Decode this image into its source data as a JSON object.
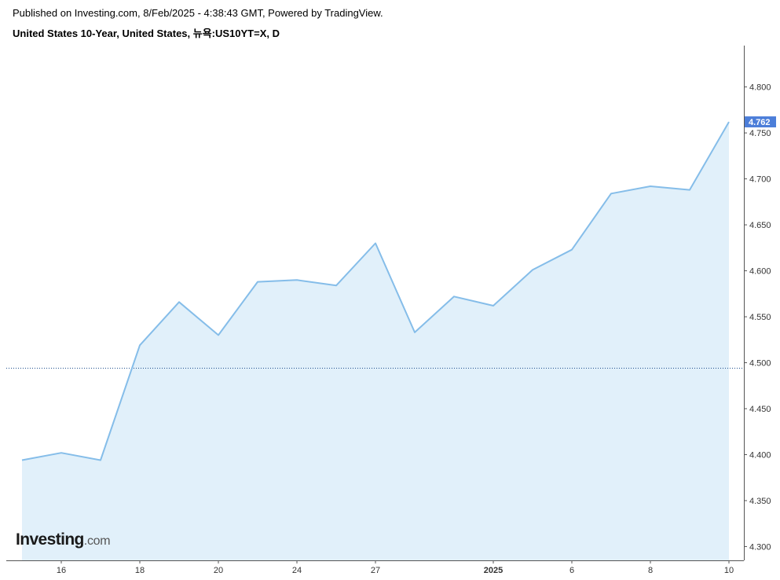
{
  "header": {
    "published": "Published on Investing.com, 8/Feb/2025 - 4:38:43 GMT, Powered by TradingView.",
    "symbol": "United States 10-Year, United States, 뉴욕:US10YT=X, D"
  },
  "logo": {
    "main": "Investing",
    "suffix": ".com"
  },
  "colors": {
    "line": "#85bde9",
    "area": "#e1f0fa",
    "price_tag": "#4c7ed9",
    "reference_line": "#1c4c8c",
    "axis": "#555555"
  },
  "chart_data": {
    "type": "area",
    "x_labels": [
      "",
      "16",
      "",
      "18",
      "",
      "20",
      "",
      "24",
      "",
      "27",
      "",
      "",
      "2025",
      "",
      "6",
      "",
      "8",
      "",
      "10"
    ],
    "bold_x_labels": [
      "2025"
    ],
    "values": [
      4.394,
      4.402,
      4.394,
      4.519,
      4.566,
      4.53,
      4.588,
      4.59,
      4.584,
      4.63,
      4.533,
      4.572,
      4.562,
      4.601,
      4.623,
      4.684,
      4.692,
      4.688,
      4.762
    ],
    "y_ticks": [
      "4.300",
      "4.350",
      "4.400",
      "4.450",
      "4.500",
      "4.550",
      "4.600",
      "4.650",
      "4.700",
      "4.750",
      "4.800"
    ],
    "y_tick_values": [
      4.3,
      4.35,
      4.4,
      4.45,
      4.5,
      4.55,
      4.6,
      4.65,
      4.7,
      4.75,
      4.8
    ],
    "ylim": [
      4.285,
      4.845
    ],
    "last_price": "4.762",
    "last_value": 4.762,
    "reference_value": 4.494,
    "grid": false,
    "legend": "none"
  }
}
